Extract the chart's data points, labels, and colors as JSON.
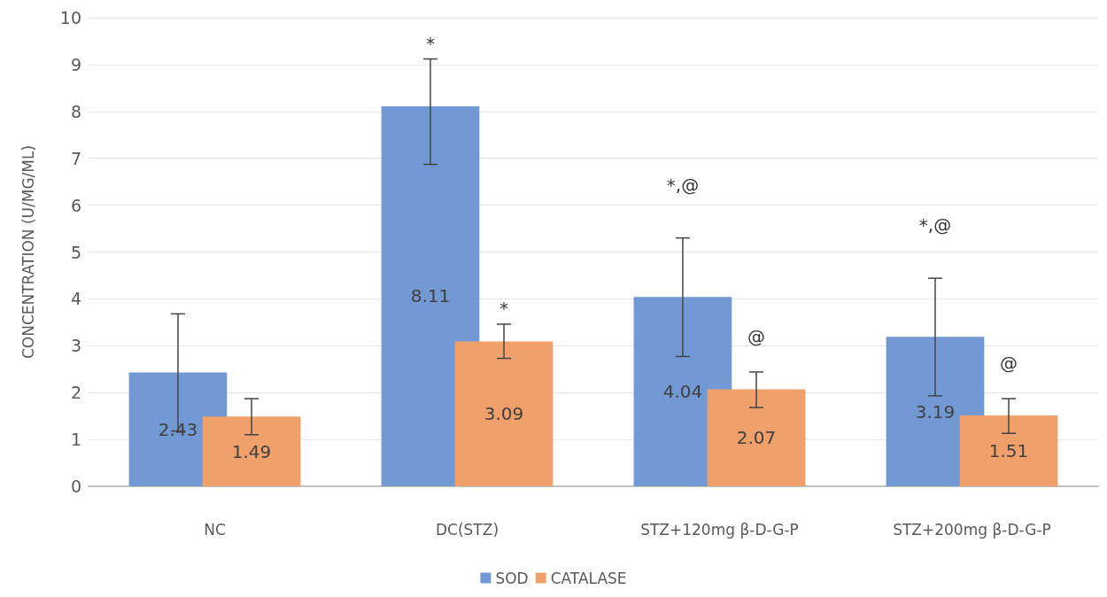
{
  "chart_data": {
    "type": "bar",
    "ylabel": "CONCENTRATION (U/MG/ML)",
    "categories": [
      "NC",
      "DC(STZ)",
      "STZ+120mg β-D-G-P",
      "STZ+200mg β-D-G-P"
    ],
    "series": [
      {
        "name": "SOD",
        "color": "#7399d4",
        "values": [
          2.43,
          8.11,
          4.04,
          3.19
        ],
        "errors": [
          [
            1.18,
            3.68
          ],
          [
            6.87,
            9.12
          ],
          [
            2.77,
            5.3
          ],
          [
            1.93,
            4.44
          ]
        ]
      },
      {
        "name": "CATALASE",
        "color": "#f0a06a",
        "values": [
          1.49,
          3.09,
          2.07,
          1.51
        ],
        "errors": [
          [
            1.1,
            1.87
          ],
          [
            2.73,
            3.46
          ],
          [
            1.68,
            2.44
          ],
          [
            1.13,
            1.87
          ]
        ]
      }
    ],
    "ylim": [
      0,
      10
    ],
    "yticks": [
      0,
      1,
      2,
      3,
      4,
      5,
      6,
      7,
      8,
      9,
      10
    ],
    "grid": "y",
    "legend": "bottom",
    "data_labels": true,
    "annotations": [
      "*",
      "*",
      "*,@",
      "@",
      "*,@",
      "@"
    ]
  }
}
